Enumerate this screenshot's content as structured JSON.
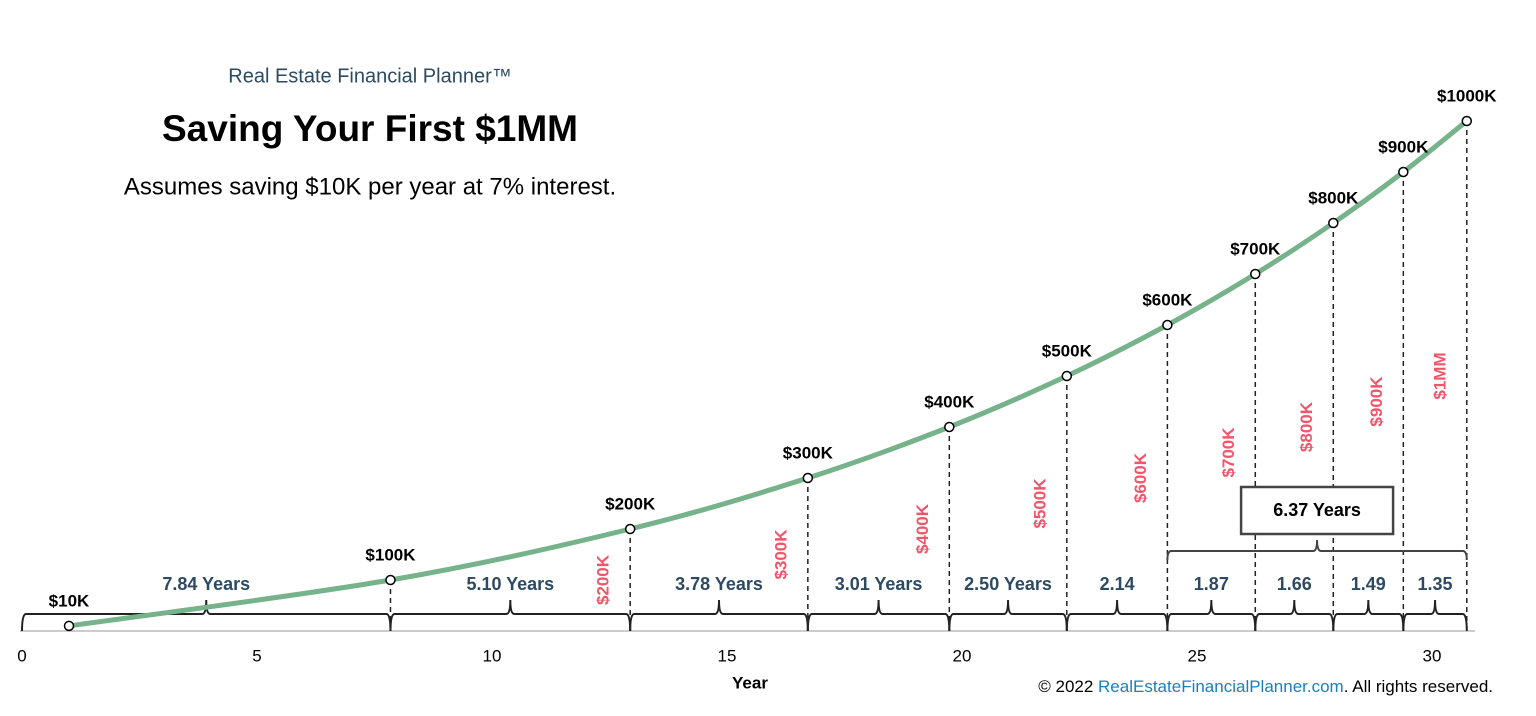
{
  "chart_data": {
    "type": "line",
    "brand": "Real Estate Financial Planner™",
    "title": "Saving Your First $1MM",
    "subtitle": "Assumes saving $10K per year at 7% interest.",
    "x_label": "Year",
    "x": [
      1,
      7.84,
      12.94,
      16.72,
      19.73,
      22.23,
      24.37,
      26.24,
      27.9,
      29.39,
      30.74
    ],
    "values": [
      10000,
      100000,
      200000,
      300000,
      400000,
      500000,
      600000,
      700000,
      800000,
      900000,
      1000000
    ],
    "value_labels": [
      "$10K",
      "$100K",
      "$200K",
      "$300K",
      "$400K",
      "$500K",
      "$600K",
      "$700K",
      "$800K",
      "$900K",
      "$1000K"
    ],
    "milestone_labels": [
      null,
      null,
      "$200K",
      "$300K",
      "$400K",
      "$500K",
      "$600K",
      "$700K",
      "$800K",
      "$900K",
      "$1MM"
    ],
    "color": "#76b28a",
    "xlim": [
      0,
      31
    ],
    "xticks": [
      0,
      5,
      10,
      15,
      20,
      25,
      30
    ],
    "ylim": [
      0,
      1000000
    ],
    "grid": false,
    "spans": {
      "values": [
        7.84,
        5.1,
        3.78,
        3.01,
        2.5,
        2.14,
        1.87,
        1.66,
        1.49,
        1.35
      ],
      "value_labels": [
        "7.84 Years",
        "5.10 Years",
        "3.78 Years",
        "3.01 Years",
        "2.50 Years",
        "2.14",
        "1.87",
        "1.66",
        "1.49",
        "1.35"
      ]
    },
    "callout": {
      "value": 6.37,
      "label": "6.37 Years"
    },
    "footer": [
      "© 2022 ",
      "RealEstateFinancialPlanner.com",
      ". All rights reserved."
    ]
  }
}
